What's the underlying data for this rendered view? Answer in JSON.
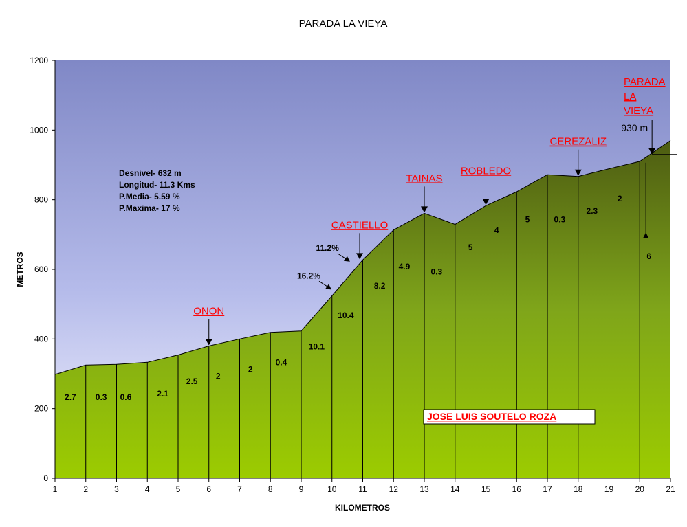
{
  "chart_data": {
    "type": "area",
    "title": "PARADA LA VIEYA",
    "xlabel": "KILOMETROS",
    "ylabel": "METROS",
    "xlim": [
      1,
      21
    ],
    "ylim": [
      0,
      1200
    ],
    "xticks": [
      "1",
      "2",
      "3",
      "4",
      "5",
      "6",
      "7",
      "8",
      "9",
      "10",
      "11",
      "12",
      "13",
      "14",
      "15",
      "16",
      "17",
      "18",
      "19",
      "20",
      "21"
    ],
    "yticks": [
      "0",
      "200",
      "400",
      "600",
      "800",
      "1000",
      "1200"
    ],
    "grid": false,
    "legend": "none",
    "profile": [
      {
        "x": 1,
        "y": 298
      },
      {
        "x": 2,
        "y": 325
      },
      {
        "x": 3,
        "y": 327
      },
      {
        "x": 4,
        "y": 333
      },
      {
        "x": 5,
        "y": 354
      },
      {
        "x": 6,
        "y": 380
      },
      {
        "x": 7,
        "y": 400
      },
      {
        "x": 8,
        "y": 419
      },
      {
        "x": 9,
        "y": 423
      },
      {
        "x": 10,
        "y": 524
      },
      {
        "x": 11,
        "y": 627
      },
      {
        "x": 12,
        "y": 713
      },
      {
        "x": 13,
        "y": 761
      },
      {
        "x": 14,
        "y": 729
      },
      {
        "x": 15,
        "y": 783
      },
      {
        "x": 16,
        "y": 823
      },
      {
        "x": 17,
        "y": 872
      },
      {
        "x": 18,
        "y": 867
      },
      {
        "x": 19,
        "y": 889
      },
      {
        "x": 20,
        "y": 910
      },
      {
        "x": 21,
        "y": 970
      }
    ],
    "segment_labels": [
      {
        "x": 1.5,
        "y": 225,
        "text": "2.7",
        "color": "#000000"
      },
      {
        "x": 2.5,
        "y": 225,
        "text": "0.3",
        "color": "#000000"
      },
      {
        "x": 3.3,
        "y": 225,
        "text": "0.6",
        "color": "#000000"
      },
      {
        "x": 4.5,
        "y": 235,
        "text": "2.1",
        "color": "#000000"
      },
      {
        "x": 5.45,
        "y": 270,
        "text": "2.5",
        "color": "#000000"
      },
      {
        "x": 6.3,
        "y": 285,
        "text": "2",
        "color": "#000000"
      },
      {
        "x": 7.35,
        "y": 305,
        "text": "2",
        "color": "#000000"
      },
      {
        "x": 8.35,
        "y": 325,
        "text": "0.4",
        "color": "#000000"
      },
      {
        "x": 9.5,
        "y": 370,
        "text": "10.1",
        "color": "#000000"
      },
      {
        "x": 10.45,
        "y": 460,
        "text": "10.4",
        "color": "#000000"
      },
      {
        "x": 11.55,
        "y": 545,
        "text": "8.2",
        "color": "#000000"
      },
      {
        "x": 12.35,
        "y": 600,
        "text": "4.9",
        "color": "#000000"
      },
      {
        "x": 13.4,
        "y": 585,
        "text": "0.3",
        "color": "#1f2fd6"
      },
      {
        "x": 14.5,
        "y": 655,
        "text": "5",
        "color": "#000000"
      },
      {
        "x": 15.35,
        "y": 705,
        "text": "4",
        "color": "#000000"
      },
      {
        "x": 16.35,
        "y": 735,
        "text": "5",
        "color": "#000000"
      },
      {
        "x": 17.4,
        "y": 735,
        "text": "0.3",
        "color": "#1f2fd6"
      },
      {
        "x": 18.45,
        "y": 760,
        "text": "2.3",
        "color": "#000000"
      },
      {
        "x": 19.35,
        "y": 795,
        "text": "2",
        "color": "#000000"
      },
      {
        "x": 20.3,
        "y": 630,
        "text": "6",
        "color": "#000000"
      }
    ],
    "places": [
      {
        "name": "ONON",
        "x": 6,
        "y": 380
      },
      {
        "name": "CASTIELLO",
        "x": 10.9,
        "y": 627
      },
      {
        "name": "TAINAS",
        "x": 13,
        "y": 761
      },
      {
        "name": "ROBLEDO",
        "x": 15,
        "y": 783
      },
      {
        "name": "CEREZALIZ",
        "x": 18,
        "y": 867
      }
    ],
    "destination": {
      "lines": [
        "PARADA",
        "LA",
        "VIEYA"
      ],
      "altitude": "930 m",
      "x": 20.4,
      "y": 930
    },
    "slope_labels": [
      {
        "text": "11.2%",
        "x": 10.45,
        "y": 630
      },
      {
        "text": "16.2%",
        "x": 9.85,
        "y": 550
      }
    ],
    "stats": [
      "Desnivel- 632 m",
      "Longitud- 11.3 Kms",
      "P.Media- 5.59 %",
      "P.Maxima- 17 %"
    ],
    "author": "JOSE LUIS SOUTELO ROZA"
  }
}
